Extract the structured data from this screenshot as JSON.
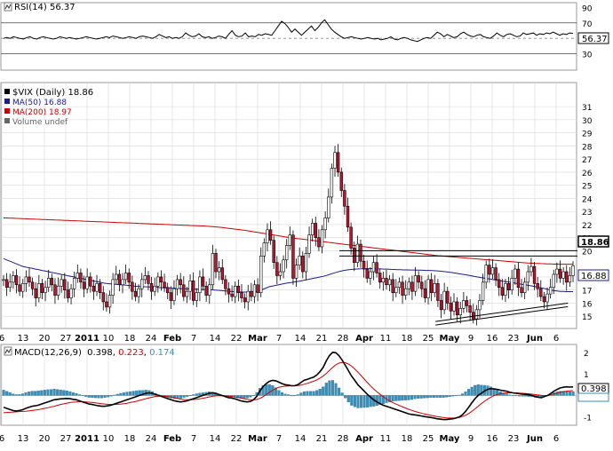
{
  "chart_data": [
    {
      "panel": "rsi",
      "type": "line",
      "title": "RSI(14) 56.37",
      "current_value_label": "56.37",
      "reference_levels": [
        70,
        30
      ],
      "ylim": [
        10,
        95
      ],
      "y_ticks": [
        "90",
        "70",
        "50",
        "30"
      ],
      "values": [
        50,
        51,
        50,
        52,
        51,
        50,
        49,
        51,
        52,
        50,
        49,
        51,
        52,
        51,
        50,
        49,
        50,
        52,
        51,
        50,
        51,
        50,
        49,
        50,
        51,
        52,
        51,
        50,
        49,
        50,
        51,
        52,
        51,
        53,
        52,
        51,
        50,
        51,
        52,
        51,
        50,
        52,
        53,
        52,
        51,
        50,
        52,
        55,
        53,
        51,
        52,
        50,
        51,
        50,
        52,
        57,
        54,
        52,
        53,
        56,
        52,
        51,
        52,
        50,
        51,
        53,
        52,
        50,
        55,
        60,
        54,
        52,
        53,
        57,
        52,
        53,
        52,
        55,
        54,
        56,
        55,
        54,
        60,
        66,
        72,
        69,
        64,
        58,
        62,
        58,
        54,
        58,
        62,
        66,
        60,
        64,
        70,
        74,
        68,
        62,
        58,
        55,
        52,
        50,
        51,
        52,
        51,
        50,
        49,
        50,
        51,
        50,
        49,
        50,
        48,
        49,
        50,
        52,
        49,
        48,
        50,
        51,
        50,
        48,
        47,
        46,
        48,
        50,
        51,
        50,
        54,
        58,
        56,
        52,
        55,
        53,
        51,
        52,
        56,
        58,
        55,
        53,
        52,
        54,
        55,
        52,
        51,
        50,
        53,
        57,
        54,
        52,
        55,
        56,
        54,
        52,
        53,
        57,
        55,
        56,
        57,
        54,
        56,
        55,
        57,
        56,
        58,
        56,
        54,
        56,
        55,
        57,
        56.37
      ]
    },
    {
      "panel": "price",
      "type": "candlestick",
      "title": "$VIX (Daily) 18.86",
      "last_price_label": "18.86",
      "ma50_label": "16.88",
      "legend": [
        {
          "name": "$VIX (Daily) 18.86",
          "color": "#000000"
        },
        {
          "name": "MA(50) 16.88",
          "color": "#1c1c8c"
        },
        {
          "name": "MA(200) 18.97",
          "color": "#cc0000"
        },
        {
          "name": "Volume undef",
          "color": "#666666"
        }
      ],
      "ylim": [
        14.2,
        32.5
      ],
      "y_ticks": [
        "31",
        "30",
        "29",
        "28",
        "27",
        "26",
        "25",
        "24",
        "23",
        "22",
        "21",
        "20",
        "18",
        "17",
        "16",
        "15"
      ],
      "resistance_levels": [
        20.0,
        19.6
      ],
      "support_line": {
        "from": [
          0.755,
          14.6
        ],
        "to": [
          0.985,
          16.0
        ]
      },
      "closes": [
        17.8,
        17.2,
        17.6,
        18.1,
        17.4,
        16.9,
        17.5,
        18.0,
        17.6,
        17.1,
        16.4,
        17.5,
        16.8,
        17.2,
        17.9,
        17.4,
        16.6,
        17.3,
        17.8,
        17.0,
        16.4,
        17.1,
        17.9,
        18.3,
        17.6,
        17.1,
        18.0,
        17.3,
        16.9,
        17.5,
        16.8,
        16.1,
        15.7,
        16.6,
        17.8,
        18.2,
        17.4,
        17.8,
        18.3,
        17.6,
        16.9,
        16.5,
        17.1,
        17.8,
        18.1,
        17.5,
        16.9,
        17.3,
        18.0,
        17.6,
        17.2,
        16.8,
        16.2,
        17.1,
        17.8,
        17.4,
        16.5,
        16.9,
        17.7,
        16.2,
        16.8,
        18.0,
        17.3,
        16.6,
        17.4,
        19.8,
        18.4,
        18.7,
        17.8,
        17.1,
        16.7,
        16.5,
        17.3,
        16.8,
        16.4,
        16.1,
        16.9,
        16.5,
        17.4,
        16.8,
        19.6,
        20.6,
        21.6,
        20.8,
        19.1,
        18.1,
        18.4,
        19.3,
        20.4,
        21.2,
        17.9,
        18.9,
        19.6,
        18.4,
        19.8,
        21.2,
        22.1,
        21.0,
        20.3,
        21.6,
        22.5,
        24.1,
        26.3,
        27.5,
        26.0,
        24.6,
        23.4,
        21.8,
        20.2,
        19.1,
        20.5,
        19.2,
        18.6,
        17.9,
        18.4,
        19.1,
        18.3,
        17.6,
        17.9,
        17.4,
        17.8,
        16.8,
        17.2,
        17.6,
        16.6,
        17.1,
        17.6,
        16.9,
        18.1,
        17.6,
        17.1,
        16.4,
        17.8,
        16.8,
        17.5,
        16.2,
        15.5,
        16.9,
        16.0,
        15.4,
        16.1,
        15.1,
        15.6,
        16.2,
        15.8,
        15.3,
        14.8,
        15.5,
        16.2,
        17.6,
        18.9,
        18.2,
        18.7,
        17.8,
        17.2,
        16.6,
        17.5,
        17.0,
        17.9,
        18.6,
        17.2,
        16.8,
        17.6,
        18.4,
        18.8,
        17.5,
        17.1,
        16.5,
        16.1,
        16.7,
        17.2,
        18.2,
        18.6,
        17.9,
        18.4,
        17.6,
        18.1,
        18.86
      ],
      "ma50": [
        19.4,
        19.3,
        19.2,
        19.1,
        19.0,
        18.9,
        18.8,
        18.75,
        18.7,
        18.65,
        18.6,
        18.55,
        18.5,
        18.45,
        18.4,
        18.35,
        18.3,
        18.25,
        18.2,
        18.15,
        18.1,
        18.05,
        18.0,
        17.95,
        17.9,
        17.85,
        17.8,
        17.75,
        17.7,
        17.65,
        17.6,
        17.55,
        17.5,
        17.48,
        17.46,
        17.44,
        17.42,
        17.4,
        17.38,
        17.35,
        17.33,
        17.3,
        17.28,
        17.26,
        17.25,
        17.24,
        17.23,
        17.22,
        17.2,
        17.18,
        17.17,
        17.16,
        17.15,
        17.14,
        17.13,
        17.12,
        17.11,
        17.1,
        17.09,
        17.08,
        17.07,
        17.06,
        17.05,
        17.04,
        17.03,
        17.02,
        17.0,
        16.98,
        16.96,
        16.94,
        16.92,
        16.9,
        16.88,
        16.86,
        16.85,
        16.84,
        16.84,
        16.85,
        16.86,
        16.88,
        16.95,
        17.05,
        17.15,
        17.25,
        17.3,
        17.35,
        17.4,
        17.45,
        17.5,
        17.55,
        17.58,
        17.62,
        17.66,
        17.7,
        17.75,
        17.8,
        17.85,
        17.9,
        17.95,
        18.0,
        18.05,
        18.12,
        18.2,
        18.28,
        18.35,
        18.42,
        18.48,
        18.52,
        18.55,
        18.58,
        18.6,
        18.61,
        18.62,
        18.63,
        18.63,
        18.63,
        18.63,
        18.62,
        18.61,
        18.6,
        18.6,
        18.58,
        18.57,
        18.56,
        18.55,
        18.54,
        18.54,
        18.53,
        18.53,
        18.52,
        18.52,
        18.51,
        18.5,
        18.5,
        18.49,
        18.47,
        18.45,
        18.43,
        18.4,
        18.37,
        18.34,
        18.3,
        18.26,
        18.22,
        18.18,
        18.14,
        18.1,
        18.05,
        18.0,
        17.96,
        17.92,
        17.88,
        17.84,
        17.8,
        17.76,
        17.72,
        17.68,
        17.64,
        17.6,
        17.56,
        17.52,
        17.48,
        17.44,
        17.4,
        17.36,
        17.32,
        17.27,
        17.22,
        17.17,
        17.12,
        17.06,
        17.0,
        16.96,
        16.93,
        16.9,
        16.89,
        16.88,
        16.88,
        16.88
      ],
      "ma200": [
        22.5,
        22.5,
        22.49,
        22.48,
        22.47,
        22.46,
        22.45,
        22.44,
        22.43,
        22.42,
        22.41,
        22.4,
        22.39,
        22.38,
        22.37,
        22.36,
        22.35,
        22.34,
        22.33,
        22.32,
        22.31,
        22.3,
        22.29,
        22.28,
        22.27,
        22.26,
        22.25,
        22.24,
        22.23,
        22.22,
        22.21,
        22.2,
        22.19,
        22.18,
        22.17,
        22.16,
        22.15,
        22.14,
        22.13,
        22.12,
        22.11,
        22.1,
        22.09,
        22.08,
        22.07,
        22.06,
        22.05,
        22.04,
        22.03,
        22.02,
        22.01,
        22.0,
        21.99,
        21.98,
        21.97,
        21.96,
        21.95,
        21.94,
        21.93,
        21.92,
        21.91,
        21.9,
        21.89,
        21.88,
        21.86,
        21.84,
        21.82,
        21.8,
        21.77,
        21.74,
        21.71,
        21.68,
        21.65,
        21.62,
        21.59,
        21.56,
        21.52,
        21.48,
        21.44,
        21.4,
        21.36,
        21.32,
        21.28,
        21.24,
        21.2,
        21.16,
        21.12,
        21.08,
        21.04,
        21.0,
        20.97,
        20.94,
        20.91,
        20.88,
        20.85,
        20.82,
        20.79,
        20.76,
        20.73,
        20.7,
        20.67,
        20.64,
        20.61,
        20.58,
        20.55,
        20.52,
        20.49,
        20.46,
        20.43,
        20.4,
        20.37,
        20.34,
        20.31,
        20.28,
        20.25,
        20.22,
        20.19,
        20.16,
        20.13,
        20.1,
        20.07,
        20.04,
        20.01,
        19.98,
        19.95,
        19.92,
        19.89,
        19.86,
        19.83,
        19.8,
        19.77,
        19.74,
        19.71,
        19.68,
        19.65,
        19.62,
        19.6,
        19.58,
        19.56,
        19.54,
        19.52,
        19.5,
        19.48,
        19.46,
        19.44,
        19.42,
        19.4,
        19.38,
        19.36,
        19.34,
        19.32,
        19.3,
        19.28,
        19.26,
        19.24,
        19.22,
        19.2,
        19.18,
        19.16,
        19.14,
        19.12,
        19.1,
        19.08,
        19.06,
        19.05,
        19.04,
        19.03,
        19.02,
        19.01,
        19.0,
        18.99,
        18.98,
        18.98,
        18.97,
        18.97,
        18.97,
        18.97,
        18.97
      ]
    },
    {
      "panel": "macd",
      "type": "line",
      "title": "MACD(12,26,9)",
      "values_shown": [
        "0.398",
        "0.223",
        "0.174"
      ],
      "value_colors": [
        "#000000",
        "#cc0000",
        "#3a8fb7"
      ],
      "current_value_label": "0.398",
      "ylim": [
        -1.3,
        2.2
      ],
      "y_ticks": [
        "2",
        "1",
        "0",
        "-1"
      ],
      "macd": [
        -0.55,
        -0.6,
        -0.65,
        -0.7,
        -0.72,
        -0.7,
        -0.66,
        -0.6,
        -0.55,
        -0.5,
        -0.48,
        -0.45,
        -0.4,
        -0.35,
        -0.3,
        -0.25,
        -0.2,
        -0.18,
        -0.16,
        -0.15,
        -0.14,
        -0.15,
        -0.18,
        -0.2,
        -0.25,
        -0.3,
        -0.35,
        -0.4,
        -0.42,
        -0.45,
        -0.48,
        -0.5,
        -0.5,
        -0.48,
        -0.45,
        -0.4,
        -0.35,
        -0.3,
        -0.25,
        -0.2,
        -0.15,
        -0.1,
        -0.05,
        0.0,
        0.05,
        0.1,
        0.12,
        0.1,
        0.05,
        0.0,
        -0.05,
        -0.1,
        -0.15,
        -0.2,
        -0.25,
        -0.28,
        -0.3,
        -0.28,
        -0.25,
        -0.2,
        -0.15,
        -0.1,
        -0.05,
        0.0,
        0.05,
        0.1,
        0.12,
        0.1,
        0.05,
        0.0,
        -0.05,
        -0.1,
        -0.12,
        -0.15,
        -0.2,
        -0.25,
        -0.28,
        -0.3,
        -0.28,
        -0.2,
        -0.05,
        0.2,
        0.4,
        0.55,
        0.65,
        0.7,
        0.68,
        0.62,
        0.55,
        0.5,
        0.48,
        0.45,
        0.45,
        0.5,
        0.6,
        0.7,
        0.75,
        0.8,
        0.85,
        0.95,
        1.1,
        1.3,
        1.6,
        1.85,
        2.0,
        1.98,
        1.85,
        1.65,
        1.4,
        1.15,
        0.9,
        0.7,
        0.5,
        0.35,
        0.2,
        0.05,
        -0.08,
        -0.2,
        -0.3,
        -0.38,
        -0.45,
        -0.5,
        -0.55,
        -0.6,
        -0.65,
        -0.7,
        -0.75,
        -0.8,
        -0.85,
        -0.88,
        -0.9,
        -0.92,
        -0.95,
        -0.98,
        -1.0,
        -1.02,
        -1.05,
        -1.08,
        -1.1,
        -1.12,
        -1.12,
        -1.1,
        -1.08,
        -1.05,
        -1.0,
        -0.9,
        -0.75,
        -0.55,
        -0.35,
        -0.15,
        0.0,
        0.1,
        0.2,
        0.28,
        0.32,
        0.3,
        0.28,
        0.25,
        0.22,
        0.2,
        0.15,
        0.12,
        0.1,
        0.08,
        0.06,
        0.05,
        0.03,
        0.0,
        -0.05,
        -0.08,
        -0.1,
        -0.05,
        0.0,
        0.1,
        0.2,
        0.28,
        0.35,
        0.38,
        0.4,
        0.39,
        0.398
      ],
      "signal": [
        -0.8,
        -0.79,
        -0.78,
        -0.77,
        -0.76,
        -0.75,
        -0.74,
        -0.73,
        -0.72,
        -0.7,
        -0.68,
        -0.66,
        -0.63,
        -0.6,
        -0.57,
        -0.53,
        -0.5,
        -0.46,
        -0.42,
        -0.39,
        -0.36,
        -0.33,
        -0.31,
        -0.3,
        -0.29,
        -0.29,
        -0.3,
        -0.31,
        -0.32,
        -0.34,
        -0.36,
        -0.38,
        -0.4,
        -0.41,
        -0.42,
        -0.42,
        -0.41,
        -0.4,
        -0.38,
        -0.36,
        -0.33,
        -0.3,
        -0.27,
        -0.23,
        -0.19,
        -0.15,
        -0.11,
        -0.08,
        -0.05,
        -0.03,
        -0.03,
        -0.04,
        -0.06,
        -0.08,
        -0.11,
        -0.14,
        -0.17,
        -0.19,
        -0.2,
        -0.2,
        -0.19,
        -0.18,
        -0.16,
        -0.13,
        -0.1,
        -0.07,
        -0.04,
        -0.02,
        -0.01,
        -0.01,
        -0.02,
        -0.03,
        -0.05,
        -0.07,
        -0.09,
        -0.12,
        -0.15,
        -0.18,
        -0.2,
        -0.21,
        -0.19,
        -0.14,
        -0.06,
        0.04,
        0.14,
        0.24,
        0.32,
        0.38,
        0.41,
        0.43,
        0.44,
        0.45,
        0.45,
        0.46,
        0.48,
        0.52,
        0.56,
        0.61,
        0.66,
        0.72,
        0.8,
        0.9,
        1.02,
        1.16,
        1.3,
        1.42,
        1.5,
        1.53,
        1.52,
        1.46,
        1.36,
        1.23,
        1.08,
        0.92,
        0.76,
        0.6,
        0.44,
        0.3,
        0.17,
        0.05,
        -0.06,
        -0.16,
        -0.25,
        -0.33,
        -0.4,
        -0.46,
        -0.52,
        -0.58,
        -0.64,
        -0.69,
        -0.74,
        -0.78,
        -0.82,
        -0.86,
        -0.89,
        -0.92,
        -0.95,
        -0.98,
        -1.0,
        -1.02,
        -1.04,
        -1.05,
        -1.05,
        -1.04,
        -1.02,
        -0.98,
        -0.92,
        -0.84,
        -0.74,
        -0.62,
        -0.5,
        -0.38,
        -0.27,
        -0.17,
        -0.08,
        -0.01,
        0.04,
        0.08,
        0.1,
        0.12,
        0.12,
        0.12,
        0.12,
        0.11,
        0.1,
        0.09,
        0.08,
        0.06,
        0.04,
        0.02,
        0.0,
        -0.01,
        0.0,
        0.03,
        0.07,
        0.11,
        0.15,
        0.18,
        0.2,
        0.21,
        0.223
      ]
    }
  ],
  "x_axis": {
    "ticks": [
      {
        "label": "6",
        "bold": false
      },
      {
        "label": "13",
        "bold": false
      },
      {
        "label": "20",
        "bold": false
      },
      {
        "label": "27",
        "bold": false
      },
      {
        "label": "2011",
        "bold": true
      },
      {
        "label": "10",
        "bold": false
      },
      {
        "label": "18",
        "bold": false
      },
      {
        "label": "24",
        "bold": false
      },
      {
        "label": "Feb",
        "bold": true
      },
      {
        "label": "7",
        "bold": false
      },
      {
        "label": "14",
        "bold": false
      },
      {
        "label": "22",
        "bold": false
      },
      {
        "label": "Mar",
        "bold": true
      },
      {
        "label": "7",
        "bold": false
      },
      {
        "label": "14",
        "bold": false
      },
      {
        "label": "21",
        "bold": false
      },
      {
        "label": "28",
        "bold": false
      },
      {
        "label": "Apr",
        "bold": true
      },
      {
        "label": "11",
        "bold": false
      },
      {
        "label": "18",
        "bold": false
      },
      {
        "label": "25",
        "bold": false
      },
      {
        "label": "May",
        "bold": true
      },
      {
        "label": "9",
        "bold": false
      },
      {
        "label": "16",
        "bold": false
      },
      {
        "label": "23",
        "bold": false
      },
      {
        "label": "Jun",
        "bold": true
      },
      {
        "label": "6",
        "bold": false
      }
    ]
  },
  "colors": {
    "up_candle": "#ffffff",
    "down_candle": "#c8102e",
    "ma50": "#1c1c8c",
    "ma200": "#cc0000",
    "histogram": "#3a8fb7",
    "grid": "#d8d8d8"
  }
}
